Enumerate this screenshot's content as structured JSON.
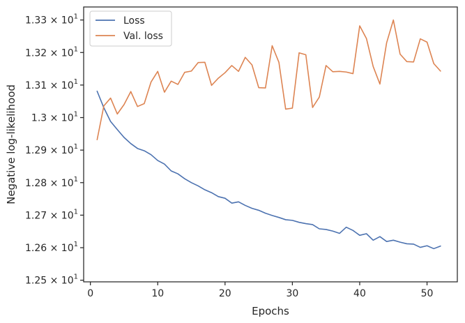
{
  "chart_data": {
    "type": "line",
    "xlabel": "Epochs",
    "ylabel": "Negative log-likelihood",
    "xlim": [
      -1,
      54.5
    ],
    "ylim": [
      12.495,
      13.34
    ],
    "grid": false,
    "legend_position": "top-left",
    "x_ticks": [
      0,
      10,
      20,
      30,
      40,
      50
    ],
    "x_tick_labels": [
      "0",
      "10",
      "20",
      "30",
      "40",
      "50"
    ],
    "y_ticks": [
      12.5,
      12.6,
      12.7,
      12.8,
      12.9,
      13.0,
      13.1,
      13.2,
      13.3
    ],
    "y_tick_labels": [
      {
        "base": "1.25 × 10",
        "exp": "1"
      },
      {
        "base": "1.26 × 10",
        "exp": "1"
      },
      {
        "base": "1.27 × 10",
        "exp": "1"
      },
      {
        "base": "1.28 × 10",
        "exp": "1"
      },
      {
        "base": "1.29 × 10",
        "exp": "1"
      },
      {
        "base": "1.3 × 10",
        "exp": "1"
      },
      {
        "base": "1.31 × 10",
        "exp": "1"
      },
      {
        "base": "1.32 × 10",
        "exp": "1"
      },
      {
        "base": "1.33 × 10",
        "exp": "1"
      }
    ],
    "x": [
      1,
      2,
      3,
      4,
      5,
      6,
      7,
      8,
      9,
      10,
      11,
      12,
      13,
      14,
      15,
      16,
      17,
      18,
      19,
      20,
      21,
      22,
      23,
      24,
      25,
      26,
      27,
      28,
      29,
      30,
      31,
      32,
      33,
      34,
      35,
      36,
      37,
      38,
      39,
      40,
      41,
      42,
      43,
      44,
      45,
      46,
      47,
      48,
      49,
      50,
      51,
      52
    ],
    "series": [
      {
        "name": "Loss",
        "color": "#4c72b0",
        "values": [
          13.081,
          13.03,
          12.988,
          12.963,
          12.939,
          12.92,
          12.905,
          12.898,
          12.886,
          12.868,
          12.857,
          12.836,
          12.827,
          12.812,
          12.8,
          12.79,
          12.778,
          12.769,
          12.757,
          12.752,
          12.737,
          12.741,
          12.73,
          12.721,
          12.715,
          12.706,
          12.699,
          12.693,
          12.686,
          12.684,
          12.678,
          12.674,
          12.671,
          12.658,
          12.656,
          12.651,
          12.644,
          12.663,
          12.653,
          12.638,
          12.643,
          12.623,
          12.634,
          12.619,
          12.623,
          12.617,
          12.612,
          12.611,
          12.601,
          12.606,
          12.597,
          12.605
        ]
      },
      {
        "name": "Val. loss",
        "color": "#dd8452",
        "values": [
          12.932,
          13.036,
          13.06,
          13.011,
          13.04,
          13.08,
          13.034,
          13.043,
          13.109,
          13.142,
          13.078,
          13.112,
          13.102,
          13.139,
          13.143,
          13.169,
          13.17,
          13.099,
          13.121,
          13.138,
          13.16,
          13.142,
          13.185,
          13.162,
          13.092,
          13.091,
          13.221,
          13.17,
          13.026,
          13.029,
          13.199,
          13.193,
          13.031,
          13.063,
          13.16,
          13.141,
          13.142,
          13.14,
          13.135,
          13.282,
          13.243,
          13.157,
          13.103,
          13.23,
          13.3,
          13.195,
          13.172,
          13.171,
          13.242,
          13.232,
          13.166,
          13.143
        ]
      }
    ]
  }
}
